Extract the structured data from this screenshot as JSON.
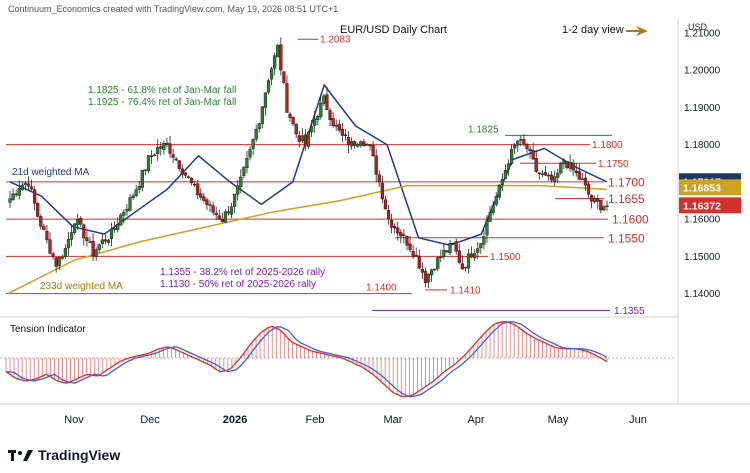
{
  "header": {
    "credit": "Continuum_Economics created with TradingView.com, May 19, 2026 08:51 UTC+1"
  },
  "view_label": "1-2 day view",
  "footer": {
    "brand": "TradingView"
  },
  "chart_data": {
    "type": "line",
    "title": "EUR/USD Daily Chart",
    "currency_label": "USD",
    "ylim": [
      1.134,
      1.214
    ],
    "y_ticks": [
      {
        "v": 1.14,
        "label": "1.14000"
      },
      {
        "v": 1.15,
        "label": "1.15000"
      },
      {
        "v": 1.16,
        "label": "1.16000"
      },
      {
        "v": 1.18,
        "label": "1.18000"
      },
      {
        "v": 1.19,
        "label": "1.19000"
      },
      {
        "v": 1.2,
        "label": "1.20000"
      },
      {
        "v": 1.21,
        "label": "1.21000"
      }
    ],
    "x_ticks": [
      "Nov",
      "Dec",
      "2026",
      "Feb",
      "Mar",
      "Apr",
      "May",
      "Jun"
    ],
    "price_badges": [
      {
        "v": 1.17017,
        "label": "1.17017",
        "color": "#1e3a5f"
      },
      {
        "v": 1.16853,
        "label": "1.16853",
        "color": "#c9a227"
      },
      {
        "v": 1.16372,
        "label": "1.16372",
        "color": "#d32f2f"
      }
    ],
    "levels": [
      {
        "v": 1.2083,
        "label": "1.2083",
        "color": "#d32f2f"
      },
      {
        "v": 1.1825,
        "label": "1.1825",
        "color": "#2e7d32"
      },
      {
        "v": 1.18,
        "label": "1.1800",
        "color": "#d32f2f"
      },
      {
        "v": 1.175,
        "label": "1.1750",
        "color": "#d32f2f"
      },
      {
        "v": 1.17,
        "label": "1.1700",
        "color": "#d32f2f"
      },
      {
        "v": 1.1655,
        "label": "1.1655",
        "color": "#d32f2f"
      },
      {
        "v": 1.16,
        "label": "1.1600",
        "color": "#d32f2f"
      },
      {
        "v": 1.155,
        "label": "1.1550",
        "color": "#d32f2f"
      },
      {
        "v": 1.15,
        "label": "1.1500",
        "color": "#d32f2f"
      },
      {
        "v": 1.141,
        "label": "1.1410",
        "color": "#d32f2f"
      },
      {
        "v": 1.14,
        "label": "1.1400",
        "color": "#d32f2f"
      },
      {
        "v": 1.1355,
        "label": "1.1355",
        "color": "#7b1fa2"
      }
    ],
    "annotations": [
      {
        "text": "1.1825 - 61.8% ret of Jan-Mar fall",
        "color": "#2e7d32"
      },
      {
        "text": "1.1925 - 76.4% ret of Jan-Mar fall",
        "color": "#2e7d32"
      },
      {
        "text": "1.1355 - 38.2% ret of 2025-2026 rally",
        "color": "#7b1fa2"
      },
      {
        "text": "1.1130 - 50% ret of 2025-2026 rally",
        "color": "#7b1fa2"
      }
    ],
    "series": [
      {
        "name": "21d weighted MA",
        "color": "#1e3a8a",
        "values": [
          1.17,
          1.1662,
          1.158,
          1.156,
          1.162,
          1.168,
          1.177,
          1.17,
          1.164,
          1.17,
          1.196,
          1.185,
          1.18,
          1.155,
          1.153,
          1.156,
          1.176,
          1.179,
          1.174,
          1.17
        ]
      },
      {
        "name": "233d weighted MA",
        "color": "#c9a227",
        "values": [
          1.14,
          1.149,
          1.154,
          1.158,
          1.162,
          1.165,
          1.169,
          1.169,
          1.169,
          1.168
        ]
      }
    ],
    "price_path": [
      1.1655,
      1.169,
      1.17,
      1.161,
      1.154,
      1.148,
      1.152,
      1.16,
      1.156,
      1.151,
      1.154,
      1.156,
      1.161,
      1.165,
      1.17,
      1.176,
      1.179,
      1.18,
      1.176,
      1.172,
      1.168,
      1.165,
      1.162,
      1.16,
      1.164,
      1.17,
      1.178,
      1.187,
      1.198,
      1.206,
      1.19,
      1.183,
      1.18,
      1.187,
      1.192,
      1.186,
      1.182,
      1.18,
      1.182,
      1.179,
      1.17,
      1.16,
      1.157,
      1.154,
      1.15,
      1.144,
      1.148,
      1.151,
      1.153,
      1.147,
      1.151,
      1.154,
      1.162,
      1.168,
      1.176,
      1.181,
      1.179,
      1.173,
      1.171,
      1.17,
      1.176,
      1.173,
      1.17,
      1.165,
      1.1637
    ],
    "tension_indicator": {
      "title": "Tension Indicator",
      "values": [
        -0.3,
        -0.45,
        -0.5,
        -0.45,
        -0.35,
        -0.5,
        -0.55,
        -0.45,
        -0.35,
        -0.4,
        -0.25,
        -0.1,
        0.0,
        0.05,
        0.1,
        0.2,
        0.25,
        0.15,
        0.05,
        -0.05,
        -0.15,
        -0.3,
        -0.25,
        0.0,
        0.3,
        0.55,
        0.7,
        0.6,
        0.35,
        0.25,
        0.15,
        0.1,
        0.05,
        0.0,
        -0.1,
        -0.2,
        -0.35,
        -0.55,
        -0.75,
        -0.85,
        -0.8,
        -0.65,
        -0.5,
        -0.3,
        -0.15,
        0.05,
        0.3,
        0.55,
        0.75,
        0.8,
        0.72,
        0.55,
        0.42,
        0.32,
        0.22,
        0.2,
        0.2,
        0.15,
        0.05,
        -0.08
      ]
    }
  }
}
